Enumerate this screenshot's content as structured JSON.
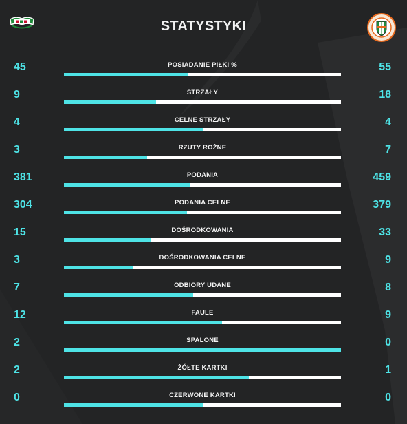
{
  "header": {
    "title": "STATYSTYKI",
    "home_logo_icon": "lechia-gdansk-crest-icon",
    "away_logo_icon": "zaglebie-lubin-crest-icon"
  },
  "colors": {
    "background": "#232425",
    "accent": "#4ee3e6",
    "bar_track": "#ffffff",
    "text": "#f2f2f2"
  },
  "stats": [
    {
      "label": "POSIADANIE PIŁKI %",
      "home": "45",
      "away": "55",
      "home_share": 0.45
    },
    {
      "label": "STRZAŁY",
      "home": "9",
      "away": "18",
      "home_share": 0.333
    },
    {
      "label": "CELNE STRZAŁY",
      "home": "4",
      "away": "4",
      "home_share": 0.5
    },
    {
      "label": "RZUTY ROŻNE",
      "home": "3",
      "away": "7",
      "home_share": 0.3
    },
    {
      "label": "PODANIA",
      "home": "381",
      "away": "459",
      "home_share": 0.454
    },
    {
      "label": "PODANIA CELNE",
      "home": "304",
      "away": "379",
      "home_share": 0.445
    },
    {
      "label": "DOŚRODKOWANIA",
      "home": "15",
      "away": "33",
      "home_share": 0.3125
    },
    {
      "label": "DOŚRODKOWANIA CELNE",
      "home": "3",
      "away": "9",
      "home_share": 0.25
    },
    {
      "label": "ODBIORY UDANE",
      "home": "7",
      "away": "8",
      "home_share": 0.467
    },
    {
      "label": "FAULE",
      "home": "12",
      "away": "9",
      "home_share": 0.571
    },
    {
      "label": "SPALONE",
      "home": "2",
      "away": "0",
      "home_share": 1.0
    },
    {
      "label": "ŻÓŁTE KARTKI",
      "home": "2",
      "away": "1",
      "home_share": 0.667
    },
    {
      "label": "CZERWONE KARTKI",
      "home": "0",
      "away": "0",
      "home_share": 0.5
    }
  ]
}
